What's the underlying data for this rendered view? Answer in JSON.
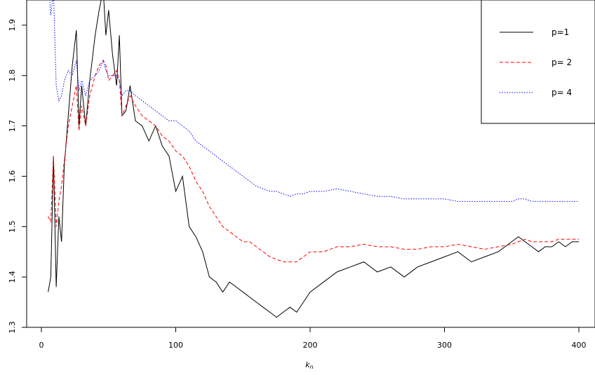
{
  "chart_data": {
    "type": "line",
    "xlabel": "k",
    "xlabel_subscript": "n",
    "ylabel": "",
    "title": "",
    "xlim": [
      0,
      400
    ],
    "ylim": [
      1.3,
      1.95
    ],
    "xticks": [
      0,
      100,
      200,
      300,
      400
    ],
    "yticks": [
      1.3,
      1.4,
      1.5,
      1.6,
      1.7,
      1.8,
      1.9
    ],
    "xtick_labels": [
      "0",
      "100",
      "200",
      "300",
      "400"
    ],
    "ytick_labels": [
      "1.3",
      "1.4",
      "1.5",
      "1.6",
      "1.7",
      "1.8",
      "1.9"
    ],
    "legend_position": "top-right",
    "series": [
      {
        "name": "p=1",
        "color": "#000000",
        "dash": "solid",
        "x": [
          5,
          7,
          9,
          11,
          13,
          15,
          17,
          20,
          23,
          26,
          28,
          30,
          33,
          36,
          40,
          43,
          46,
          48,
          50,
          53,
          56,
          58,
          60,
          63,
          66,
          70,
          75,
          80,
          85,
          90,
          95,
          100,
          105,
          110,
          115,
          120,
          125,
          130,
          135,
          140,
          145,
          150,
          155,
          160,
          165,
          170,
          175,
          180,
          185,
          190,
          195,
          200,
          210,
          220,
          230,
          240,
          250,
          260,
          270,
          280,
          290,
          300,
          310,
          320,
          330,
          340,
          350,
          355,
          360,
          365,
          370,
          375,
          380,
          385,
          390,
          395,
          400
        ],
        "y": [
          1.37,
          1.4,
          1.64,
          1.38,
          1.52,
          1.47,
          1.62,
          1.72,
          1.82,
          1.89,
          1.7,
          1.78,
          1.7,
          1.79,
          1.88,
          1.93,
          1.97,
          1.88,
          1.93,
          1.84,
          1.78,
          1.88,
          1.72,
          1.73,
          1.78,
          1.71,
          1.7,
          1.67,
          1.7,
          1.66,
          1.64,
          1.57,
          1.6,
          1.5,
          1.48,
          1.45,
          1.4,
          1.39,
          1.37,
          1.39,
          1.38,
          1.37,
          1.36,
          1.35,
          1.34,
          1.33,
          1.32,
          1.33,
          1.34,
          1.33,
          1.35,
          1.37,
          1.39,
          1.41,
          1.42,
          1.43,
          1.41,
          1.42,
          1.4,
          1.42,
          1.43,
          1.44,
          1.45,
          1.43,
          1.44,
          1.45,
          1.47,
          1.48,
          1.47,
          1.46,
          1.45,
          1.46,
          1.46,
          1.47,
          1.46,
          1.47,
          1.47
        ]
      },
      {
        "name": "p= 2",
        "color": "#ff0000",
        "dash": "dashed",
        "x": [
          5,
          7,
          9,
          11,
          13,
          15,
          17,
          20,
          23,
          26,
          28,
          30,
          33,
          36,
          40,
          43,
          46,
          48,
          50,
          53,
          56,
          58,
          60,
          63,
          66,
          70,
          75,
          80,
          85,
          90,
          95,
          100,
          105,
          110,
          115,
          120,
          125,
          130,
          135,
          140,
          145,
          150,
          155,
          160,
          165,
          170,
          175,
          180,
          185,
          190,
          195,
          200,
          210,
          220,
          230,
          240,
          250,
          260,
          270,
          280,
          290,
          300,
          310,
          320,
          330,
          340,
          350,
          355,
          360,
          365,
          370,
          375,
          380,
          385,
          390,
          395,
          400
        ],
        "y": [
          1.52,
          1.51,
          1.64,
          1.5,
          1.55,
          1.58,
          1.63,
          1.7,
          1.74,
          1.78,
          1.69,
          1.74,
          1.7,
          1.76,
          1.8,
          1.82,
          1.83,
          1.82,
          1.79,
          1.8,
          1.81,
          1.79,
          1.72,
          1.74,
          1.76,
          1.74,
          1.72,
          1.71,
          1.7,
          1.68,
          1.67,
          1.65,
          1.64,
          1.62,
          1.59,
          1.57,
          1.54,
          1.52,
          1.5,
          1.49,
          1.48,
          1.47,
          1.47,
          1.46,
          1.45,
          1.44,
          1.435,
          1.43,
          1.43,
          1.43,
          1.44,
          1.45,
          1.45,
          1.46,
          1.46,
          1.465,
          1.46,
          1.46,
          1.455,
          1.455,
          1.46,
          1.46,
          1.465,
          1.46,
          1.455,
          1.46,
          1.465,
          1.47,
          1.475,
          1.47,
          1.47,
          1.47,
          1.47,
          1.475,
          1.475,
          1.475,
          1.475
        ]
      },
      {
        "name": "p= 4",
        "color": "#0000ff",
        "dash": "dotted",
        "x": [
          5,
          7,
          9,
          11,
          13,
          15,
          17,
          20,
          23,
          26,
          28,
          30,
          33,
          36,
          40,
          43,
          46,
          48,
          50,
          53,
          56,
          58,
          60,
          63,
          66,
          70,
          75,
          80,
          85,
          90,
          95,
          100,
          105,
          110,
          115,
          120,
          125,
          130,
          135,
          140,
          145,
          150,
          155,
          160,
          165,
          170,
          175,
          180,
          185,
          190,
          195,
          200,
          210,
          220,
          230,
          240,
          250,
          260,
          270,
          280,
          290,
          300,
          310,
          320,
          330,
          340,
          350,
          355,
          360,
          365,
          370,
          375,
          380,
          385,
          390,
          395,
          400
        ],
        "y": [
          1.99,
          1.92,
          1.97,
          1.78,
          1.75,
          1.76,
          1.79,
          1.81,
          1.8,
          1.83,
          1.77,
          1.79,
          1.76,
          1.79,
          1.8,
          1.81,
          1.83,
          1.81,
          1.8,
          1.8,
          1.8,
          1.79,
          1.76,
          1.77,
          1.77,
          1.76,
          1.75,
          1.74,
          1.73,
          1.72,
          1.71,
          1.71,
          1.7,
          1.69,
          1.67,
          1.66,
          1.65,
          1.64,
          1.63,
          1.62,
          1.61,
          1.6,
          1.59,
          1.58,
          1.575,
          1.57,
          1.57,
          1.565,
          1.56,
          1.565,
          1.565,
          1.57,
          1.57,
          1.575,
          1.57,
          1.565,
          1.56,
          1.56,
          1.555,
          1.555,
          1.555,
          1.555,
          1.55,
          1.55,
          1.55,
          1.55,
          1.55,
          1.555,
          1.555,
          1.55,
          1.55,
          1.55,
          1.55,
          1.55,
          1.55,
          1.55,
          1.55
        ]
      }
    ]
  }
}
